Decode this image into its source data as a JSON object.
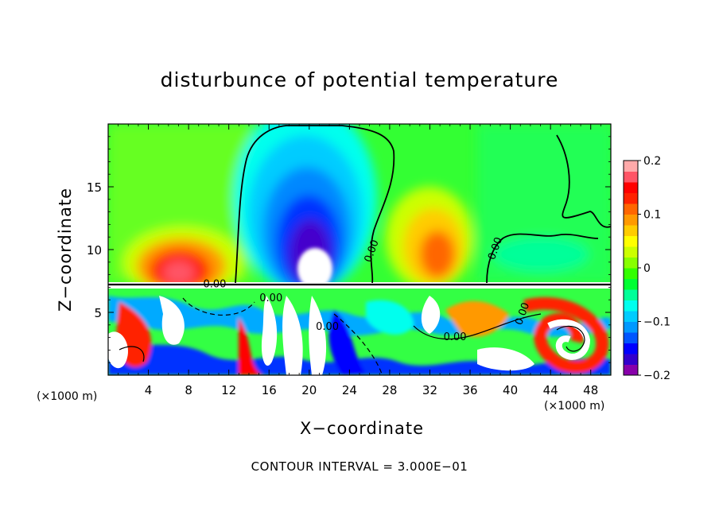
{
  "chart_data": {
    "type": "heatmap",
    "title": "disturbunce of potential temperature",
    "xlabel": "X−coordinate",
    "ylabel": "Z−coordinate",
    "x_unit_left": "(×1000 m)",
    "x_unit_right": "(×1000 m)",
    "contour_interval": "CONTOUR INTERVAL = 3.000E−01",
    "x_ticks": [
      4,
      8,
      12,
      16,
      20,
      24,
      28,
      32,
      36,
      40,
      44,
      48
    ],
    "y_ticks": [
      5,
      10,
      15
    ],
    "xlim": [
      0,
      50
    ],
    "ylim": [
      0,
      20
    ],
    "colorbar": {
      "range": [
        -0.2,
        0.2
      ],
      "tick_values": [
        0.2,
        0.1,
        0,
        -0.1,
        -0.2
      ],
      "tick_labels": [
        "0.2",
        "0.1",
        "0",
        "−0.1",
        "−0.2"
      ],
      "colors": [
        "#8800aa",
        "#3300cc",
        "#0000ff",
        "#0055ff",
        "#0099ff",
        "#00ccff",
        "#00ffee",
        "#00ff99",
        "#00ff33",
        "#33ff00",
        "#88ff00",
        "#ccff00",
        "#ffff00",
        "#ffcc00",
        "#ff9900",
        "#ff6600",
        "#ff2200",
        "#ff0000",
        "#ff5566",
        "#ffaaaa"
      ]
    },
    "contour_labels": [
      {
        "text": "0.00",
        "x": 10.6,
        "z": 7.0
      },
      {
        "text": "0.00",
        "x": 26.5,
        "z": 9.8
      },
      {
        "text": "0.00",
        "x": 38.8,
        "z": 10.0
      },
      {
        "text": "0.00",
        "x": 16.2,
        "z": 5.9
      },
      {
        "text": "0.00",
        "x": 21.8,
        "z": 3.6
      },
      {
        "text": "0.00",
        "x": 34.5,
        "z": 2.8
      },
      {
        "text": "0.00",
        "x": 41.5,
        "z": 4.8
      }
    ]
  }
}
